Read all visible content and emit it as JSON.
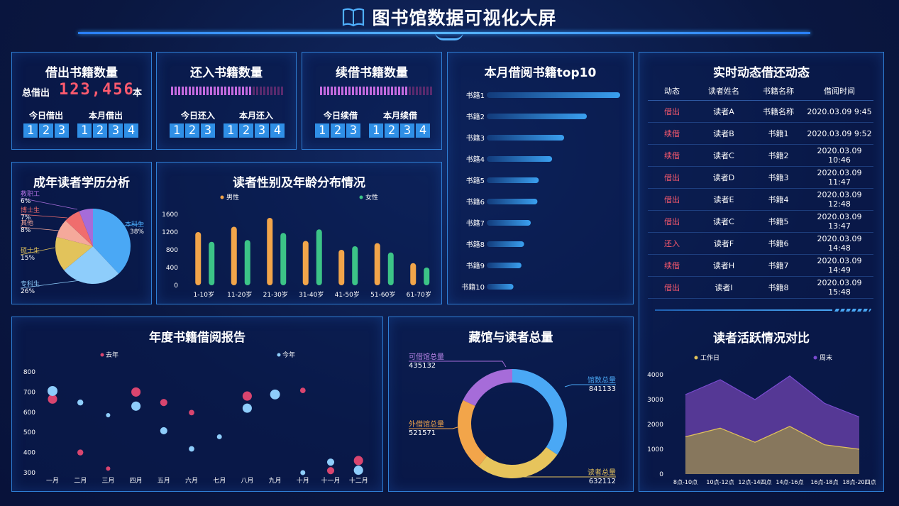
{
  "header": {
    "title": "图书馆数据可视化大屏"
  },
  "borrow": {
    "title": "借出书籍数量",
    "total_label": "总借出",
    "total_value": "123,456",
    "unit": "本",
    "today_label": "今日借出",
    "today_digits": [
      "1",
      "2",
      "3"
    ],
    "month_label": "本月借出",
    "month_digits": [
      "1",
      "2",
      "3",
      "4"
    ]
  },
  "return": {
    "title": "还入书籍数量",
    "progress": 0.71,
    "today_label": "今日还入",
    "today_digits": [
      "1",
      "2",
      "3"
    ],
    "month_label": "本月还入",
    "month_digits": [
      "1",
      "2",
      "3",
      "4"
    ]
  },
  "renew": {
    "title": "续借书籍数量",
    "progress": 0.79,
    "today_label": "今日续借",
    "today_digits": [
      "1",
      "2",
      "3"
    ],
    "month_label": "本月续借",
    "month_digits": [
      "1",
      "2",
      "3",
      "4"
    ]
  },
  "top10": {
    "title": "本月借阅书籍top10",
    "chart_data": {
      "type": "bar",
      "categories": [
        "书籍1",
        "书籍2",
        "书籍3",
        "书籍4",
        "书籍5",
        "书籍6",
        "书籍7",
        "书籍8",
        "书籍9",
        "书籍10"
      ],
      "values": [
        100,
        75,
        58,
        49,
        39,
        38,
        33,
        28,
        26,
        20
      ]
    }
  },
  "realtime": {
    "title": "实时动态借还动态",
    "columns": [
      "动态",
      "读者姓名",
      "书籍名称",
      "借阅时间"
    ],
    "rows": [
      [
        "借出",
        "读者A",
        "书籍名称",
        "2020.03.09 9:45"
      ],
      [
        "续借",
        "读者B",
        "书籍1",
        "2020.03.09 9:52"
      ],
      [
        "续借",
        "读者C",
        "书籍2",
        "2020.03.09 10:46"
      ],
      [
        "借出",
        "读者D",
        "书籍3",
        "2020.03.09 11:47"
      ],
      [
        "借出",
        "读者E",
        "书籍4",
        "2020.03.09 12:48"
      ],
      [
        "借出",
        "读者C",
        "书籍5",
        "2020.03.09 13:47"
      ],
      [
        "还入",
        "读者F",
        "书籍6",
        "2020.03.09 14:48"
      ],
      [
        "续借",
        "读者H",
        "书籍7",
        "2020.03.09 14:49"
      ],
      [
        "借出",
        "读者I",
        "书籍8",
        "2020.03.09 15:48"
      ]
    ],
    "action_color": "#ff5a6e"
  },
  "education": {
    "title": "成年读者学历分析",
    "chart_data": {
      "type": "pie",
      "slices": [
        {
          "name": "本科生",
          "value": 38,
          "label": "38%",
          "color": "#4aa8f5"
        },
        {
          "name": "专科生",
          "value": 26,
          "label": "26%",
          "color": "#8ecdfb"
        },
        {
          "name": "硕士生",
          "value": 15,
          "label": "15%",
          "color": "#e2c35b"
        },
        {
          "name": "其他",
          "value": 8,
          "label": "8%",
          "color": "#f5a99b"
        },
        {
          "name": "博士生",
          "value": 7,
          "label": "7%",
          "color": "#f06d6d"
        },
        {
          "name": "教职工",
          "value": 6,
          "label": "6%",
          "color": "#a66cd9"
        }
      ]
    }
  },
  "gender_age": {
    "title": "读者性别及年龄分布情况",
    "chart_data": {
      "type": "bar",
      "categories": [
        "1-10岁",
        "11-20岁",
        "21-30岁",
        "31-40岁",
        "41-50岁",
        "51-60岁",
        "61-70岁"
      ],
      "series": [
        {
          "name": "男性",
          "values": [
            1200,
            1320,
            1520,
            1000,
            800,
            950,
            500
          ],
          "color": "#f2a54a"
        },
        {
          "name": "女性",
          "values": [
            980,
            1020,
            1180,
            1260,
            880,
            740,
            400
          ],
          "color": "#3cc487"
        }
      ],
      "ylim": [
        0,
        1600
      ],
      "yticks": [
        0,
        400,
        800,
        1200,
        1600
      ]
    }
  },
  "annual": {
    "title": "年度书籍借阅报告",
    "chart_data": {
      "type": "scatter",
      "categories": [
        "一月",
        "二月",
        "三月",
        "四月",
        "五月",
        "六月",
        "七月",
        "八月",
        "九月",
        "十月",
        "十一月",
        "十二月"
      ],
      "series": [
        {
          "name": "去年",
          "color": "#d9456f",
          "points": [
            {
              "x": "一月",
              "y": 665,
              "size": 3
            },
            {
              "x": "二月",
              "y": 400,
              "size": 1
            },
            {
              "x": "三月",
              "y": 320,
              "size": 0.4
            },
            {
              "x": "四月",
              "y": 700,
              "size": 3
            },
            {
              "x": "五月",
              "y": 648,
              "size": 1.6
            },
            {
              "x": "六月",
              "y": 598,
              "size": 0.8
            },
            {
              "x": "八月",
              "y": 680,
              "size": 3
            },
            {
              "x": "十月",
              "y": 708,
              "size": 0.8
            },
            {
              "x": "十一月",
              "y": 310,
              "size": 1.6
            },
            {
              "x": "十二月",
              "y": 360,
              "size": 3
            }
          ]
        },
        {
          "name": "今年",
          "color": "#8ecdfb",
          "points": [
            {
              "x": "一月",
              "y": 705,
              "size": 3.5
            },
            {
              "x": "二月",
              "y": 648,
              "size": 1
            },
            {
              "x": "三月",
              "y": 585,
              "size": 0.4
            },
            {
              "x": "四月",
              "y": 630,
              "size": 3
            },
            {
              "x": "五月",
              "y": 508,
              "size": 1.6
            },
            {
              "x": "六月",
              "y": 418,
              "size": 0.8
            },
            {
              "x": "七月",
              "y": 478,
              "size": 0.6
            },
            {
              "x": "八月",
              "y": 620,
              "size": 3
            },
            {
              "x": "九月",
              "y": 688,
              "size": 3.5
            },
            {
              "x": "十月",
              "y": 300,
              "size": 0.6
            },
            {
              "x": "十一月",
              "y": 352,
              "size": 1.6
            },
            {
              "x": "十二月",
              "y": 312,
              "size": 3
            }
          ]
        }
      ],
      "ylim": [
        300,
        800
      ],
      "yticks": [
        300,
        400,
        500,
        600,
        700,
        800
      ]
    }
  },
  "collection": {
    "title": "藏馆与读者总量",
    "chart_data": {
      "type": "pie",
      "slices": [
        {
          "name": "馆数总量",
          "value": 841133,
          "color": "#4aa8f5"
        },
        {
          "name": "读者总量",
          "value": 632112,
          "color": "#e7c45c"
        },
        {
          "name": "外借馆总量",
          "value": 521571,
          "color": "#f2a54a"
        },
        {
          "name": "可借馆总量",
          "value": 435132,
          "color": "#a66cd9"
        }
      ]
    },
    "labels": {
      "available": {
        "name": "可借馆总量",
        "value": "435132"
      },
      "total": {
        "name": "馆数总量",
        "value": "841133"
      },
      "external": {
        "name": "外借馆总量",
        "value": "521571"
      },
      "readers": {
        "name": "读者总量",
        "value": "632112"
      }
    }
  },
  "activity": {
    "title": "读者活跃情况对比",
    "chart_data": {
      "type": "area",
      "categories": [
        "8点-10点",
        "10点-12点",
        "12点-14四点",
        "14点-16点",
        "16点-18点",
        "18点-20四点"
      ],
      "series": [
        {
          "name": "工作日",
          "values": [
            1500,
            1850,
            1280,
            1920,
            1180,
            1000
          ],
          "color": "#e2c35b"
        },
        {
          "name": "周末",
          "values": [
            3200,
            3800,
            3000,
            3950,
            2850,
            2300
          ],
          "color": "#7a4bd1"
        }
      ],
      "ylim": [
        0,
        4000
      ],
      "yticks": [
        0,
        1000,
        2000,
        3000,
        4000
      ]
    }
  }
}
